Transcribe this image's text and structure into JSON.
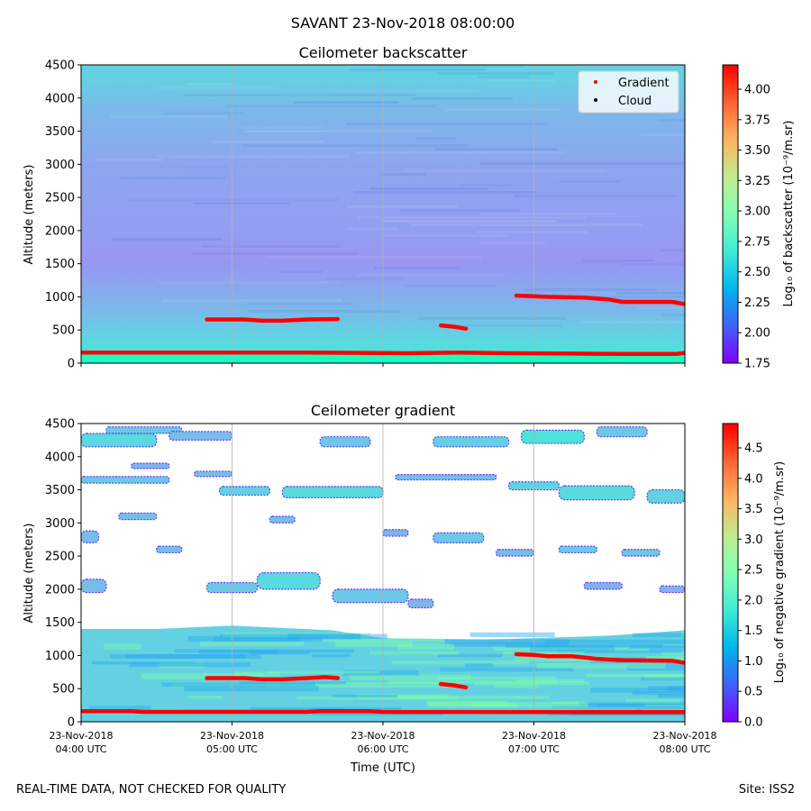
{
  "suptitle": "SAVANT 23-Nov-2018 08:00:00",
  "footer_left": "REAL-TIME DATA, NOT CHECKED FOR QUALITY",
  "footer_right": "Site: ISS2",
  "chart_data": [
    {
      "type": "heatmap",
      "title": "Ceilometer backscatter",
      "xlabel": "",
      "ylabel": "Altitude (meters)",
      "ylim": [
        0,
        4500
      ],
      "yticks": [
        0,
        500,
        1000,
        1500,
        2000,
        2500,
        3000,
        3500,
        4000,
        4500
      ],
      "xlim": [
        "2018-11-23T04:00",
        "2018-11-23T08:00"
      ],
      "xtick_times": [
        "2018-11-23T04:00",
        "2018-11-23T05:00",
        "2018-11-23T06:00",
        "2018-11-23T07:00",
        "2018-11-23T08:00"
      ],
      "grid": "vertical",
      "legend": {
        "placement": "top-right",
        "entries": [
          {
            "name": "Gradient",
            "color": "#ff0000"
          },
          {
            "name": "Cloud",
            "color": "#000000"
          }
        ]
      },
      "colorbar": {
        "label": "Log₁₀ of backscatter (10⁻⁹/m.sr)",
        "range": [
          1.75,
          4.2
        ],
        "ticks": [
          "1.75",
          "2.00",
          "2.25",
          "2.50",
          "2.75",
          "3.00",
          "3.25",
          "3.50",
          "3.75",
          "4.00"
        ],
        "colormap": "rainbow"
      },
      "field_profile": [
        {
          "altitude": 0,
          "value": 2.85
        },
        {
          "altitude": 150,
          "value": 2.85
        },
        {
          "altitude": 170,
          "value": 2.6
        },
        {
          "altitude": 500,
          "value": 2.48
        },
        {
          "altitude": 800,
          "value": 2.38
        },
        {
          "altitude": 1500,
          "value": 2.24
        },
        {
          "altitude": 2000,
          "value": 2.27
        },
        {
          "altitude": 3000,
          "value": 2.3
        },
        {
          "altitude": 3800,
          "value": 2.38
        },
        {
          "altitude": 4300,
          "value": 2.5
        },
        {
          "altitude": 4500,
          "value": 2.5
        }
      ],
      "gradient_layers": [
        [
          {
            "time": "2018-11-23T04:00",
            "altitude": 160
          },
          {
            "time": "2018-11-23T05:30",
            "altitude": 160
          },
          {
            "time": "2018-11-23T06:10",
            "altitude": 150
          },
          {
            "time": "2018-11-23T06:30",
            "altitude": 160
          },
          {
            "time": "2018-11-23T06:50",
            "altitude": 150
          },
          {
            "time": "2018-11-23T07:35",
            "altitude": 140
          },
          {
            "time": "2018-11-23T07:57",
            "altitude": 140
          },
          {
            "time": "2018-11-23T08:00",
            "altitude": 155
          }
        ],
        [
          {
            "time": "2018-11-23T04:50",
            "altitude": 660
          },
          {
            "time": "2018-11-23T05:05",
            "altitude": 660
          },
          {
            "time": "2018-11-23T05:12",
            "altitude": 640
          },
          {
            "time": "2018-11-23T05:20",
            "altitude": 640
          },
          {
            "time": "2018-11-23T05:30",
            "altitude": 660
          },
          {
            "time": "2018-11-23T05:42",
            "altitude": 665
          }
        ],
        [
          {
            "time": "2018-11-23T06:23",
            "altitude": 570
          },
          {
            "time": "2018-11-23T06:28",
            "altitude": 550
          },
          {
            "time": "2018-11-23T06:33",
            "altitude": 520
          }
        ],
        [
          {
            "time": "2018-11-23T06:53",
            "altitude": 1020
          },
          {
            "time": "2018-11-23T07:00",
            "altitude": 1010
          },
          {
            "time": "2018-11-23T07:05",
            "altitude": 1000
          },
          {
            "time": "2018-11-23T07:20",
            "altitude": 990
          },
          {
            "time": "2018-11-23T07:30",
            "altitude": 960
          },
          {
            "time": "2018-11-23T07:35",
            "altitude": 925
          },
          {
            "time": "2018-11-23T07:55",
            "altitude": 925
          },
          {
            "time": "2018-11-23T08:00",
            "altitude": 890
          }
        ]
      ]
    },
    {
      "type": "heatmap",
      "title": "Ceilometer gradient",
      "xlabel": "Time (UTC)",
      "ylabel": "Altitude (meters)",
      "ylim": [
        0,
        4500
      ],
      "yticks": [
        0,
        500,
        1000,
        1500,
        2000,
        2500,
        3000,
        3500,
        4000,
        4500
      ],
      "xlim": [
        "2018-11-23T04:00",
        "2018-11-23T08:00"
      ],
      "xtick_times": [
        "2018-11-23T04:00",
        "2018-11-23T05:00",
        "2018-11-23T06:00",
        "2018-11-23T07:00",
        "2018-11-23T08:00"
      ],
      "xtick_labels": [
        [
          "23-Nov-2018",
          "04:00 UTC"
        ],
        [
          "23-Nov-2018",
          "05:00 UTC"
        ],
        [
          "23-Nov-2018",
          "06:00 UTC"
        ],
        [
          "23-Nov-2018",
          "07:00 UTC"
        ],
        [
          "23-Nov-2018",
          "08:00 UTC"
        ]
      ],
      "grid": "vertical",
      "colorbar": {
        "label": "Log₁₀ of negative gradient (10⁻⁹/m.sr)",
        "range": [
          0.0,
          4.9
        ],
        "ticks": [
          "0.0",
          "0.5",
          "1.0",
          "1.5",
          "2.0",
          "2.5",
          "3.0",
          "3.5",
          "4.0",
          "4.5"
        ],
        "colormap": "rainbow"
      },
      "layer_value": 1.5,
      "layer_top": [
        {
          "time": "2018-11-23T04:00",
          "altitude": 1400
        },
        {
          "time": "2018-11-23T04:30",
          "altitude": 1400
        },
        {
          "time": "2018-11-23T05:00",
          "altitude": 1450
        },
        {
          "time": "2018-11-23T05:40",
          "altitude": 1380
        },
        {
          "time": "2018-11-23T06:00",
          "altitude": 1260
        },
        {
          "time": "2018-11-23T06:40",
          "altitude": 1240
        },
        {
          "time": "2018-11-23T07:00",
          "altitude": 1260
        },
        {
          "time": "2018-11-23T07:30",
          "altitude": 1300
        },
        {
          "time": "2018-11-23T08:00",
          "altitude": 1380
        }
      ],
      "patches": [
        {
          "t0": "2018-11-23T04:00",
          "t1": "2018-11-23T04:30",
          "alt0": 4150,
          "alt1": 4350,
          "value": 1.6
        },
        {
          "t0": "2018-11-23T04:10",
          "t1": "2018-11-23T04:40",
          "alt0": 4350,
          "alt1": 4450,
          "value": 1.4
        },
        {
          "t0": "2018-11-23T04:35",
          "t1": "2018-11-23T05:00",
          "alt0": 4250,
          "alt1": 4380,
          "value": 1.3
        },
        {
          "t0": "2018-11-23T05:35",
          "t1": "2018-11-23T05:55",
          "alt0": 4150,
          "alt1": 4300,
          "value": 1.4
        },
        {
          "t0": "2018-11-23T06:20",
          "t1": "2018-11-23T06:50",
          "alt0": 4150,
          "alt1": 4300,
          "value": 1.5
        },
        {
          "t0": "2018-11-23T06:55",
          "t1": "2018-11-23T07:20",
          "alt0": 4200,
          "alt1": 4400,
          "value": 1.7
        },
        {
          "t0": "2018-11-23T07:25",
          "t1": "2018-11-23T07:45",
          "alt0": 4300,
          "alt1": 4450,
          "value": 1.4
        },
        {
          "t0": "2018-11-23T04:45",
          "t1": "2018-11-23T05:00",
          "alt0": 3700,
          "alt1": 3780,
          "value": 1.3
        },
        {
          "t0": "2018-11-23T04:20",
          "t1": "2018-11-23T04:35",
          "alt0": 3820,
          "alt1": 3900,
          "value": 1.2
        },
        {
          "t0": "2018-11-23T04:00",
          "t1": "2018-11-23T04:35",
          "alt0": 3600,
          "alt1": 3700,
          "value": 1.4
        },
        {
          "t0": "2018-11-23T04:55",
          "t1": "2018-11-23T05:15",
          "alt0": 3420,
          "alt1": 3550,
          "value": 1.5
        },
        {
          "t0": "2018-11-23T05:20",
          "t1": "2018-11-23T06:00",
          "alt0": 3380,
          "alt1": 3550,
          "value": 1.6
        },
        {
          "t0": "2018-11-23T06:05",
          "t1": "2018-11-23T06:45",
          "alt0": 3650,
          "alt1": 3730,
          "value": 1.3
        },
        {
          "t0": "2018-11-23T06:50",
          "t1": "2018-11-23T07:10",
          "alt0": 3500,
          "alt1": 3620,
          "value": 1.5
        },
        {
          "t0": "2018-11-23T07:10",
          "t1": "2018-11-23T07:40",
          "alt0": 3350,
          "alt1": 3560,
          "value": 1.6
        },
        {
          "t0": "2018-11-23T07:45",
          "t1": "2018-11-23T08:00",
          "alt0": 3300,
          "alt1": 3500,
          "value": 1.5
        },
        {
          "t0": "2018-11-23T04:15",
          "t1": "2018-11-23T04:30",
          "alt0": 3050,
          "alt1": 3150,
          "value": 1.3
        },
        {
          "t0": "2018-11-23T04:00",
          "t1": "2018-11-23T04:07",
          "alt0": 2700,
          "alt1": 2880,
          "value": 1.3
        },
        {
          "t0": "2018-11-23T04:30",
          "t1": "2018-11-23T04:40",
          "alt0": 2550,
          "alt1": 2650,
          "value": 1.3
        },
        {
          "t0": "2018-11-23T05:15",
          "t1": "2018-11-23T05:25",
          "alt0": 3000,
          "alt1": 3100,
          "value": 1.3
        },
        {
          "t0": "2018-11-23T06:00",
          "t1": "2018-11-23T06:10",
          "alt0": 2800,
          "alt1": 2900,
          "value": 1.2
        },
        {
          "t0": "2018-11-23T06:20",
          "t1": "2018-11-23T06:40",
          "alt0": 2700,
          "alt1": 2850,
          "value": 1.4
        },
        {
          "t0": "2018-11-23T06:45",
          "t1": "2018-11-23T07:00",
          "alt0": 2500,
          "alt1": 2600,
          "value": 1.3
        },
        {
          "t0": "2018-11-23T07:10",
          "t1": "2018-11-23T07:25",
          "alt0": 2550,
          "alt1": 2650,
          "value": 1.4
        },
        {
          "t0": "2018-11-23T07:35",
          "t1": "2018-11-23T07:50",
          "alt0": 2500,
          "alt1": 2600,
          "value": 1.4
        },
        {
          "t0": "2018-11-23T04:50",
          "t1": "2018-11-23T05:10",
          "alt0": 1950,
          "alt1": 2100,
          "value": 1.4
        },
        {
          "t0": "2018-11-23T05:10",
          "t1": "2018-11-23T05:35",
          "alt0": 2000,
          "alt1": 2250,
          "value": 1.6
        },
        {
          "t0": "2018-11-23T05:40",
          "t1": "2018-11-23T06:10",
          "alt0": 1800,
          "alt1": 2000,
          "value": 1.4
        },
        {
          "t0": "2018-11-23T06:10",
          "t1": "2018-11-23T06:20",
          "alt0": 1720,
          "alt1": 1850,
          "value": 1.2
        },
        {
          "t0": "2018-11-23T07:20",
          "t1": "2018-11-23T07:35",
          "alt0": 2000,
          "alt1": 2100,
          "value": 1.2
        },
        {
          "t0": "2018-11-23T07:50",
          "t1": "2018-11-23T08:00",
          "alt0": 1950,
          "alt1": 2050,
          "value": 1.2
        },
        {
          "t0": "2018-11-23T04:00",
          "t1": "2018-11-23T04:10",
          "alt0": 1950,
          "alt1": 2150,
          "value": 1.3
        }
      ],
      "gradient_layers": [
        [
          {
            "time": "2018-11-23T04:00",
            "altitude": 160
          },
          {
            "time": "2018-11-23T04:20",
            "altitude": 160
          },
          {
            "time": "2018-11-23T04:25",
            "altitude": 150
          },
          {
            "time": "2018-11-23T05:30",
            "altitude": 150
          },
          {
            "time": "2018-11-23T05:35",
            "altitude": 160
          },
          {
            "time": "2018-11-23T05:55",
            "altitude": 160
          },
          {
            "time": "2018-11-23T06:00",
            "altitude": 150
          },
          {
            "time": "2018-11-23T08:00",
            "altitude": 145
          }
        ],
        [
          {
            "time": "2018-11-23T04:50",
            "altitude": 660
          },
          {
            "time": "2018-11-23T05:05",
            "altitude": 660
          },
          {
            "time": "2018-11-23T05:12",
            "altitude": 640
          },
          {
            "time": "2018-11-23T05:20",
            "altitude": 640
          },
          {
            "time": "2018-11-23T05:30",
            "altitude": 660
          },
          {
            "time": "2018-11-23T05:37",
            "altitude": 675
          },
          {
            "time": "2018-11-23T05:42",
            "altitude": 660
          }
        ],
        [
          {
            "time": "2018-11-23T06:23",
            "altitude": 570
          },
          {
            "time": "2018-11-23T06:28",
            "altitude": 550
          },
          {
            "time": "2018-11-23T06:33",
            "altitude": 520
          }
        ],
        [
          {
            "time": "2018-11-23T06:53",
            "altitude": 1020
          },
          {
            "time": "2018-11-23T07:00",
            "altitude": 1010
          },
          {
            "time": "2018-11-23T07:05",
            "altitude": 990
          },
          {
            "time": "2018-11-23T07:15",
            "altitude": 990
          },
          {
            "time": "2018-11-23T07:25",
            "altitude": 950
          },
          {
            "time": "2018-11-23T07:35",
            "altitude": 930
          },
          {
            "time": "2018-11-23T07:55",
            "altitude": 920
          },
          {
            "time": "2018-11-23T08:00",
            "altitude": 890
          }
        ]
      ]
    }
  ]
}
